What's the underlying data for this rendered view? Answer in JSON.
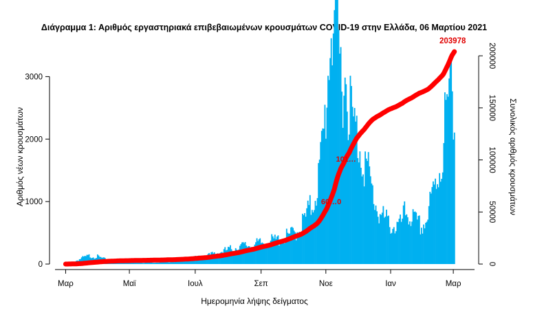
{
  "chart_data": {
    "type": "bar",
    "title": "Διάγραμμα 1: Αριθμός εργαστηριακά επιβεβαιωμένων κρουσμάτων COVID-19 στην Ελλάδα, 06 Μαρτίου 2021",
    "xlabel": "Ημερομηνία λήψης δείγματος",
    "ylabel_left": "Αριθμός νέων κρουσμάτων",
    "ylabel_right": "Συνολικός αριθμός κρουσμάτων",
    "x_ticks": [
      "Μαρ",
      "Μαϊ",
      "Ιουλ",
      "Σεπ",
      "Νοε",
      "Ιαν",
      "Μαρ"
    ],
    "x_tick_days": [
      0,
      60,
      122,
      184,
      245,
      306,
      365
    ],
    "y_left_ticks": [
      0,
      1000,
      2000,
      3000
    ],
    "y_left_lim": [
      0,
      3500
    ],
    "y_right_ticks": [
      0,
      50000,
      100000,
      150000,
      200000
    ],
    "y_right_lim": [
      0,
      210000
    ],
    "bar_color": "#00b0f0",
    "line_color": "#ff0000",
    "daily_keypoints": {
      "day": [
        0,
        8,
        15,
        22,
        30,
        38,
        48,
        60,
        75,
        90,
        105,
        120,
        135,
        150,
        162,
        170,
        180,
        190,
        200,
        210,
        218,
        225,
        232,
        238,
        242,
        246,
        249,
        252,
        255,
        258,
        262,
        266,
        270,
        275,
        280,
        285,
        290,
        295,
        300,
        305,
        310,
        315,
        320,
        325,
        330,
        335,
        340,
        345,
        350,
        355,
        358,
        361,
        363,
        366
      ],
      "value": [
        5,
        30,
        80,
        110,
        100,
        60,
        40,
        25,
        20,
        25,
        40,
        80,
        120,
        180,
        230,
        250,
        270,
        300,
        330,
        380,
        450,
        600,
        800,
        1150,
        1600,
        2300,
        3200,
        3500,
        3200,
        2700,
        2600,
        2400,
        1900,
        1700,
        1500,
        1200,
        900,
        700,
        600,
        550,
        500,
        520,
        700,
        650,
        550,
        500,
        600,
        900,
        1200,
        1500,
        2100,
        2000,
        2700,
        2100
      ]
    },
    "annotations": [
      {
        "text": "203978",
        "day": 367,
        "cumulative": 203978
      },
      {
        "text": "101…",
        "day": 264,
        "cumulative": 101000
      },
      {
        "text": "60…0",
        "day": 250,
        "cumulative": 60000
      }
    ]
  }
}
